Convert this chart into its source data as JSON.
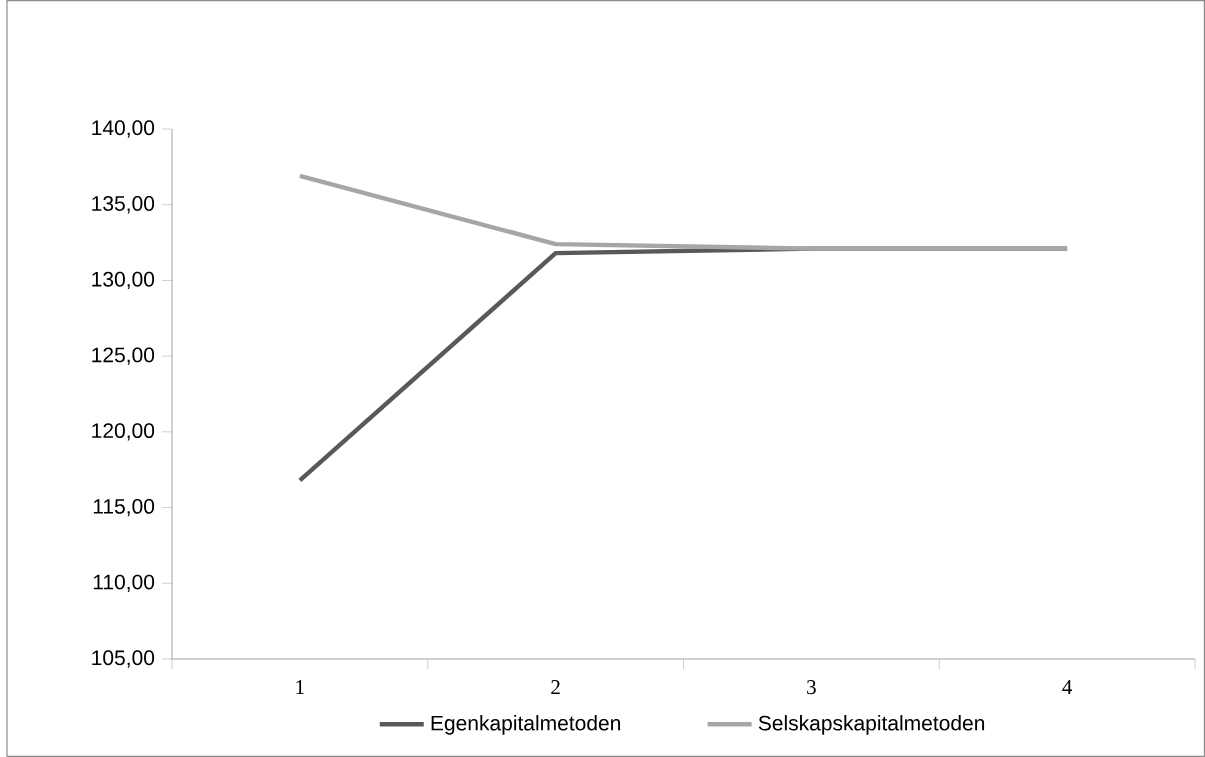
{
  "chart_data": {
    "type": "line",
    "categories": [
      "1",
      "2",
      "3",
      "4"
    ],
    "series": [
      {
        "name": "Egenkapitalmetoden",
        "color": "#595959",
        "values": [
          116.8,
          131.8,
          132.1,
          132.1
        ]
      },
      {
        "name": "Selskapskapitalmetoden",
        "color": "#a6a6a6",
        "values": [
          136.9,
          132.4,
          132.1,
          132.1
        ]
      }
    ],
    "ylim": [
      105,
      140
    ],
    "yticks": [
      {
        "value": 105,
        "label": "105,00"
      },
      {
        "value": 110,
        "label": "110,00"
      },
      {
        "value": 115,
        "label": "115,00"
      },
      {
        "value": 120,
        "label": "120,00"
      },
      {
        "value": 125,
        "label": "125,00"
      },
      {
        "value": 130,
        "label": "130,00"
      },
      {
        "value": 135,
        "label": "135,00"
      },
      {
        "value": 140,
        "label": "140,00"
      }
    ],
    "legend": "bottom"
  }
}
